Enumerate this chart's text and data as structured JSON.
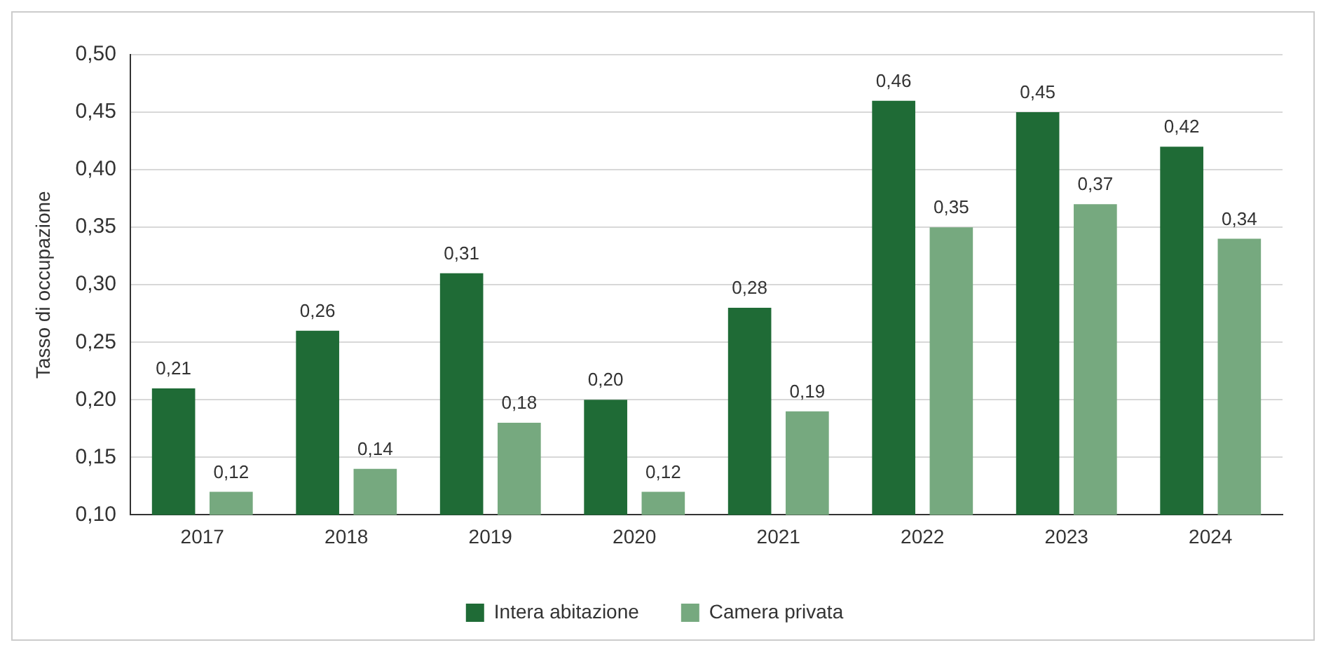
{
  "chart_data": {
    "type": "bar",
    "ylabel": "Tasso di occupazione",
    "categories": [
      "2017",
      "2018",
      "2019",
      "2020",
      "2021",
      "2022",
      "2023",
      "2024"
    ],
    "series": [
      {
        "name": "Intera abitazione",
        "color": "#1f6b36",
        "values": [
          0.21,
          0.26,
          0.31,
          0.2,
          0.28,
          0.46,
          0.45,
          0.42
        ],
        "value_labels": [
          "0,21",
          "0,26",
          "0,31",
          "0,20",
          "0,28",
          "0,46",
          "0,45",
          "0,42"
        ]
      },
      {
        "name": "Camera privata",
        "color": "#76a97f",
        "values": [
          0.12,
          0.14,
          0.18,
          0.12,
          0.19,
          0.35,
          0.37,
          0.34
        ],
        "value_labels": [
          "0,12",
          "0,14",
          "0,18",
          "0,12",
          "0,19",
          "0,35",
          "0,37",
          "0,34"
        ]
      }
    ],
    "ylim": [
      0.1,
      0.5
    ],
    "yticks": [
      {
        "value": 0.1,
        "label": "0,10"
      },
      {
        "value": 0.15,
        "label": "0,15"
      },
      {
        "value": 0.2,
        "label": "0,20"
      },
      {
        "value": 0.25,
        "label": "0,25"
      },
      {
        "value": 0.3,
        "label": "0,30"
      },
      {
        "value": 0.35,
        "label": "0,35"
      },
      {
        "value": 0.4,
        "label": "0,40"
      },
      {
        "value": 0.45,
        "label": "0,45"
      },
      {
        "value": 0.5,
        "label": "0,50"
      }
    ],
    "grid": "y",
    "legend": "bottom"
  }
}
